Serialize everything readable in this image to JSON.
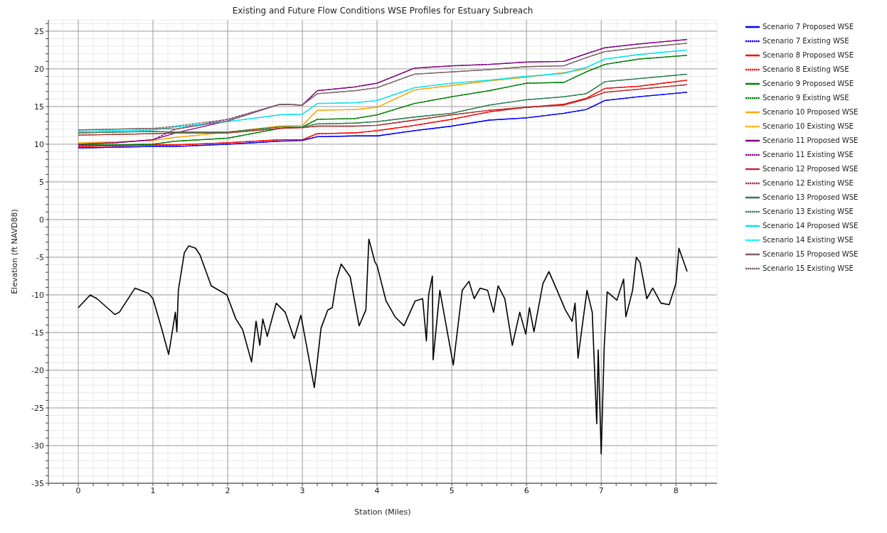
{
  "chart_data": {
    "type": "line",
    "title": "Existing and Future Flow Conditions WSE Profiles for Estuary Subreach",
    "xlabel": "Station (Miles)",
    "ylabel": "Elevation (ft NAVD88)",
    "x": [
      0,
      0.5,
      1,
      1.3,
      2,
      2.7,
      3,
      3.2,
      3.7,
      4,
      4.5,
      5,
      5.5,
      6,
      6.5,
      6.8,
      7.05,
      7.5,
      8.15
    ],
    "xlim": [
      -0.4,
      8.55
    ],
    "xticks": [
      {
        "value": -0.4,
        "label": null
      },
      {
        "value": -0.2,
        "label": null
      },
      0,
      {
        "value": 0.2,
        "label": null
      },
      {
        "value": 0.4,
        "label": null
      },
      {
        "value": 0.6,
        "label": null
      },
      {
        "value": 0.8,
        "label": null
      },
      1,
      {
        "value": 1.2,
        "label": null
      },
      {
        "value": 1.4,
        "label": null
      },
      {
        "value": 1.6,
        "label": null
      },
      {
        "value": 1.8,
        "label": null
      },
      2,
      {
        "value": 2.2,
        "label": null
      },
      {
        "value": 2.4,
        "label": null
      },
      {
        "value": 2.6,
        "label": null
      },
      {
        "value": 2.8,
        "label": null
      },
      3,
      {
        "value": 3.2,
        "label": null
      },
      {
        "value": 3.4,
        "label": null
      },
      {
        "value": 3.6,
        "label": null
      },
      {
        "value": 3.8,
        "label": null
      },
      4,
      {
        "value": 4.2,
        "label": null
      },
      {
        "value": 4.4,
        "label": null
      },
      {
        "value": 4.6,
        "label": null
      },
      {
        "value": 4.8,
        "label": null
      },
      5,
      {
        "value": 5.2,
        "label": null
      },
      {
        "value": 5.4,
        "label": null
      },
      {
        "value": 5.6,
        "label": null
      },
      {
        "value": 5.8,
        "label": null
      },
      6,
      {
        "value": 6.2,
        "label": null
      },
      {
        "value": 6.4,
        "label": null
      },
      {
        "value": 6.6,
        "label": null
      },
      {
        "value": 6.8,
        "label": null
      },
      7,
      {
        "value": 7.2,
        "label": null
      },
      {
        "value": 7.4,
        "label": null
      },
      {
        "value": 7.6,
        "label": null
      },
      {
        "value": 7.8,
        "label": null
      },
      8,
      {
        "value": 8.2,
        "label": null
      },
      {
        "value": 8.4,
        "label": null
      }
    ],
    "ylim": [
      -35,
      26.5
    ],
    "yticks": [
      -35,
      {
        "value": -34,
        "label": null
      },
      {
        "value": -33,
        "label": null
      },
      {
        "value": -32,
        "label": null
      },
      {
        "value": -31,
        "label": null
      },
      -30,
      {
        "value": -29,
        "label": null
      },
      {
        "value": -28,
        "label": null
      },
      {
        "value": -27,
        "label": null
      },
      {
        "value": -26,
        "label": null
      },
      -25,
      {
        "value": -24,
        "label": null
      },
      {
        "value": -23,
        "label": null
      },
      {
        "value": -22,
        "label": null
      },
      {
        "value": -21,
        "label": null
      },
      -20,
      {
        "value": -19,
        "label": null
      },
      {
        "value": -18,
        "label": null
      },
      {
        "value": -17,
        "label": null
      },
      {
        "value": -16,
        "label": null
      },
      -15,
      {
        "value": -14,
        "label": null
      },
      {
        "value": -13,
        "label": null
      },
      {
        "value": -12,
        "label": null
      },
      {
        "value": -11,
        "label": null
      },
      -10,
      {
        "value": -9,
        "label": null
      },
      {
        "value": -8,
        "label": null
      },
      {
        "value": -7,
        "label": null
      },
      {
        "value": -6,
        "label": null
      },
      -5,
      {
        "value": -4,
        "label": null
      },
      {
        "value": -3,
        "label": null
      },
      {
        "value": -2,
        "label": null
      },
      {
        "value": -1,
        "label": null
      },
      0,
      {
        "value": 1,
        "label": null
      },
      {
        "value": 2,
        "label": null
      },
      {
        "value": 3,
        "label": null
      },
      {
        "value": 4,
        "label": null
      },
      5,
      {
        "value": 6,
        "label": null
      },
      {
        "value": 7,
        "label": null
      },
      {
        "value": 8,
        "label": null
      },
      {
        "value": 9,
        "label": null
      },
      10,
      {
        "value": 11,
        "label": null
      },
      {
        "value": 12,
        "label": null
      },
      {
        "value": 13,
        "label": null
      },
      {
        "value": 14,
        "label": null
      },
      15,
      {
        "value": 16,
        "label": null
      },
      {
        "value": 17,
        "label": null
      },
      {
        "value": 18,
        "label": null
      },
      {
        "value": 19,
        "label": null
      },
      20,
      {
        "value": 21,
        "label": null
      },
      {
        "value": 22,
        "label": null
      },
      {
        "value": 23,
        "label": null
      },
      {
        "value": 24,
        "label": null
      },
      25,
      {
        "value": 26,
        "label": null
      }
    ],
    "grid": true,
    "legend": "top right",
    "series": [
      {
        "name": "Scenario 7 Proposed WSE",
        "color": "#0000ff",
        "line_style": "solid",
        "values": [
          9.5,
          9.6,
          9.7,
          9.7,
          10.0,
          10.4,
          10.5,
          11.0,
          11.1,
          11.1,
          11.8,
          12.4,
          13.2,
          13.5,
          14.1,
          14.6,
          15.8,
          16.3,
          16.9
        ]
      },
      {
        "name": "Scenario 7 Existing WSE",
        "color": "#0000ff",
        "line_style": "dashed",
        "values": [
          9.5,
          9.6,
          9.7,
          9.7,
          10.0,
          10.4,
          10.5,
          11.0,
          11.1,
          11.1,
          11.8,
          12.4,
          13.2,
          13.5,
          14.1,
          14.6,
          15.8,
          16.3,
          16.9
        ]
      },
      {
        "name": "Scenario 8 Proposed WSE",
        "color": "#ff0000",
        "line_style": "solid",
        "values": [
          9.7,
          9.8,
          9.9,
          9.9,
          10.2,
          10.6,
          10.6,
          11.4,
          11.5,
          11.8,
          12.5,
          13.3,
          14.3,
          14.9,
          15.3,
          16.1,
          17.4,
          17.7,
          18.5
        ]
      },
      {
        "name": "Scenario 8 Existing WSE",
        "color": "#ff0000",
        "line_style": "dashed",
        "values": [
          9.7,
          9.8,
          9.9,
          9.9,
          10.2,
          10.6,
          10.6,
          11.4,
          11.5,
          11.8,
          12.5,
          13.3,
          14.3,
          14.9,
          15.3,
          16.1,
          17.4,
          17.7,
          18.5
        ]
      },
      {
        "name": "Scenario 9 Proposed WSE",
        "color": "#008000",
        "line_style": "solid",
        "values": [
          9.9,
          9.9,
          10.0,
          10.4,
          10.8,
          12.1,
          12.3,
          13.3,
          13.4,
          13.9,
          15.4,
          16.3,
          17.1,
          18.1,
          18.2,
          19.6,
          20.6,
          21.3,
          21.8
        ]
      },
      {
        "name": "Scenario 9 Existing WSE",
        "color": "#008000",
        "line_style": "dashed",
        "values": [
          9.9,
          9.9,
          10.0,
          10.4,
          10.8,
          12.1,
          12.3,
          13.3,
          13.4,
          13.9,
          15.4,
          16.3,
          17.1,
          18.1,
          18.2,
          19.6,
          20.6,
          21.3,
          21.8
        ]
      },
      {
        "name": "Scenario 10 Proposed WSE",
        "color": "#ffa500",
        "line_style": "solid",
        "values": [
          10.2,
          10.3,
          10.5,
          10.9,
          11.6,
          12.4,
          12.5,
          14.5,
          14.6,
          14.9,
          17.2,
          17.8,
          18.4,
          18.9,
          19.5,
          20.0,
          null,
          null,
          null
        ]
      },
      {
        "name": "Scenario 10 Existing WSE",
        "color": "#ffa500",
        "line_style": "dashed",
        "values": [
          10.2,
          10.3,
          10.5,
          10.9,
          11.6,
          12.4,
          12.5,
          14.5,
          14.6,
          14.9,
          17.2,
          17.8,
          18.4,
          18.9,
          19.5,
          20.0,
          null,
          null,
          null
        ]
      },
      {
        "name": "Scenario 11 Proposed WSE",
        "color": "#800080",
        "line_style": "solid",
        "values": [
          10.0,
          10.2,
          10.6,
          11.5,
          13.1,
          15.3,
          15.2,
          17.1,
          17.6,
          18.1,
          20.1,
          20.4,
          20.6,
          20.9,
          21.0,
          22.0,
          22.8,
          23.3,
          23.9
        ]
      },
      {
        "name": "Scenario 11 Existing WSE",
        "color": "#800080",
        "line_style": "dashed",
        "values": [
          10.0,
          10.2,
          10.6,
          12.0,
          13.3,
          15.3,
          15.2,
          17.1,
          17.6,
          18.1,
          20.1,
          20.4,
          20.6,
          20.9,
          21.0,
          22.0,
          22.8,
          23.3,
          23.9
        ]
      },
      {
        "name": "Scenario 12 Proposed WSE",
        "color": "#b03030",
        "line_style": "solid",
        "values": [
          11.2,
          11.3,
          11.4,
          11.5,
          11.5,
          12.1,
          12.2,
          12.4,
          12.4,
          12.5,
          13.2,
          13.9,
          14.5,
          14.9,
          15.2,
          16.0,
          16.9,
          17.3,
          17.9
        ]
      },
      {
        "name": "Scenario 12 Existing WSE",
        "color": "#b03030",
        "line_style": "dashed",
        "values": [
          11.2,
          11.3,
          11.4,
          11.5,
          11.5,
          12.1,
          12.2,
          12.4,
          12.4,
          12.5,
          13.2,
          13.9,
          14.5,
          14.9,
          15.2,
          16.0,
          16.9,
          17.3,
          17.9
        ]
      },
      {
        "name": "Scenario 13 Proposed WSE",
        "color": "#2e7d52",
        "line_style": "solid",
        "values": [
          11.5,
          11.6,
          11.7,
          11.6,
          11.6,
          12.3,
          12.3,
          12.7,
          12.8,
          13.0,
          13.6,
          14.1,
          15.2,
          15.9,
          16.3,
          16.7,
          18.3,
          18.7,
          19.3
        ]
      },
      {
        "name": "Scenario 13 Existing WSE",
        "color": "#2e7d52",
        "line_style": "dashed",
        "values": [
          11.5,
          11.6,
          11.7,
          11.6,
          11.6,
          12.3,
          12.3,
          12.7,
          12.8,
          13.0,
          13.6,
          14.1,
          15.2,
          15.9,
          16.3,
          16.7,
          18.3,
          18.7,
          19.3
        ]
      },
      {
        "name": "Scenario 14 Proposed WSE",
        "color": "#00e5ee",
        "line_style": "solid",
        "values": [
          11.7,
          11.8,
          11.9,
          12.3,
          13.0,
          13.9,
          14.0,
          15.4,
          15.5,
          15.8,
          17.5,
          18.1,
          18.5,
          19.0,
          19.4,
          20.2,
          21.3,
          21.9,
          22.5
        ]
      },
      {
        "name": "Scenario 14 Existing WSE",
        "color": "#00e5ee",
        "line_style": "dashed",
        "values": [
          11.7,
          11.8,
          11.9,
          12.3,
          13.0,
          13.9,
          14.0,
          15.4,
          15.5,
          15.8,
          17.5,
          18.1,
          18.5,
          19.0,
          19.4,
          20.2,
          21.3,
          21.9,
          22.5
        ]
      },
      {
        "name": "Scenario 15 Proposed WSE",
        "color": "#7a6363",
        "line_style": "solid",
        "values": [
          11.9,
          12.0,
          12.1,
          12.0,
          13.1,
          15.3,
          15.2,
          16.7,
          17.1,
          17.5,
          19.3,
          19.6,
          19.9,
          20.3,
          20.4,
          21.5,
          22.3,
          22.8,
          23.4
        ]
      },
      {
        "name": "Scenario 15 Existing WSE",
        "color": "#7a6363",
        "line_style": "dashed",
        "values": [
          11.9,
          12.0,
          12.1,
          12.4,
          13.3,
          15.3,
          15.2,
          16.7,
          17.1,
          17.5,
          19.3,
          19.6,
          19.9,
          20.3,
          20.4,
          21.5,
          22.3,
          22.8,
          23.4
        ]
      },
      {
        "color": "#000000",
        "line_style": "solid",
        "x": [
          0,
          0.16,
          0.25,
          0.49,
          0.55,
          0.76,
          0.94,
          1.0,
          1.12,
          1.21,
          1.3,
          1.32,
          1.34,
          1.42,
          1.48,
          1.57,
          1.63,
          1.78,
          1.99,
          2.11,
          2.2,
          2.32,
          2.38,
          2.43,
          2.47,
          2.53,
          2.65,
          2.77,
          2.89,
          2.98,
          3.07,
          3.16,
          3.25,
          3.34,
          3.4,
          3.46,
          3.52,
          3.64,
          3.76,
          3.85,
          3.89,
          3.97,
          4.0,
          4.12,
          4.24,
          4.36,
          4.51,
          4.61,
          4.66,
          4.69,
          4.74,
          4.75,
          4.84,
          5.02,
          5.14,
          5.23,
          5.3,
          5.38,
          5.48,
          5.56,
          5.62,
          5.71,
          5.81,
          5.91,
          5.99,
          6.04,
          6.1,
          6.22,
          6.3,
          6.41,
          6.52,
          6.61,
          6.65,
          6.69,
          6.74,
          6.81,
          6.88,
          6.94,
          6.96,
          7.0,
          7.04,
          7.08,
          7.21,
          7.3,
          7.33,
          7.42,
          7.47,
          7.52,
          7.61,
          7.69,
          7.8,
          7.91,
          8.0,
          8.04,
          8.15
        ],
        "values": [
          -11.7,
          -10.0,
          -10.5,
          -12.6,
          -12.3,
          -9.1,
          -9.8,
          -10.5,
          -14.6,
          -17.9,
          -12.3,
          -14.9,
          -9.4,
          -4.4,
          -3.5,
          -3.8,
          -4.7,
          -8.8,
          -10.0,
          -13.2,
          -14.6,
          -18.9,
          -13.5,
          -16.7,
          -13.2,
          -15.5,
          -11.1,
          -12.3,
          -15.8,
          -12.7,
          -17.5,
          -22.3,
          -14.4,
          -12.0,
          -11.7,
          -7.9,
          -5.9,
          -7.6,
          -14.1,
          -12.0,
          -2.6,
          -5.6,
          -6.1,
          -10.8,
          -12.9,
          -14.1,
          -10.8,
          -10.5,
          -16.1,
          -10.0,
          -7.5,
          -18.6,
          -9.4,
          -19.3,
          -9.4,
          -8.2,
          -10.5,
          -9.1,
          -9.4,
          -12.3,
          -8.8,
          -10.5,
          -16.7,
          -12.3,
          -15.2,
          -11.7,
          -14.9,
          -8.5,
          -6.9,
          -9.4,
          -12.0,
          -13.5,
          -11.1,
          -18.4,
          -14.6,
          -9.4,
          -12.3,
          -27.1,
          -17.3,
          -31.1,
          -17.0,
          -9.6,
          -10.7,
          -7.9,
          -12.9,
          -9.4,
          -5.0,
          -5.7,
          -10.5,
          -9.1,
          -11.1,
          -11.3,
          -8.5,
          -3.8,
          -6.9
        ]
      }
    ]
  }
}
